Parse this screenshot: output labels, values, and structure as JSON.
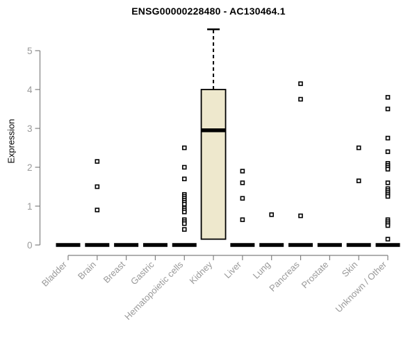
{
  "chart_data": {
    "type": "boxplot",
    "title": "ENSG00000228480 - AC130464.1",
    "ylabel": "Expression",
    "xlabel": "",
    "ylim": [
      0,
      5.6
    ],
    "yticks": [
      0,
      1,
      2,
      3,
      4,
      5
    ],
    "grid": false,
    "legend": "none",
    "categories": [
      "Bladder",
      "Brain",
      "Breast",
      "Gastric",
      "Hematopoietic cells",
      "Kidney",
      "Liver",
      "Lung",
      "Pancreas",
      "Prostate",
      "Skin",
      "Unknown / Other"
    ],
    "series": [
      {
        "category": "Bladder",
        "q1": 0,
        "median": 0,
        "q3": 0,
        "outliers": []
      },
      {
        "category": "Brain",
        "q1": 0,
        "median": 0,
        "q3": 0,
        "outliers": [
          2.15,
          1.5,
          0.9
        ]
      },
      {
        "category": "Breast",
        "q1": 0,
        "median": 0,
        "q3": 0,
        "outliers": []
      },
      {
        "category": "Gastric",
        "q1": 0,
        "median": 0,
        "q3": 0,
        "outliers": []
      },
      {
        "category": "Hematopoietic cells",
        "q1": 0,
        "median": 0,
        "q3": 0,
        "outliers": [
          2.5,
          2.0,
          1.7,
          1.3,
          1.25,
          1.2,
          1.15,
          1.1,
          1.05,
          0.95,
          0.9,
          0.85,
          0.65,
          0.6,
          0.55,
          0.4
        ]
      },
      {
        "category": "Kidney",
        "q1": 0.15,
        "median": 2.95,
        "q3": 4.0,
        "whisker_high": 5.55,
        "outliers": []
      },
      {
        "category": "Liver",
        "q1": 0,
        "median": 0,
        "q3": 0,
        "outliers": [
          1.9,
          1.6,
          1.2,
          0.65
        ]
      },
      {
        "category": "Lung",
        "q1": 0,
        "median": 0,
        "q3": 0,
        "outliers": [
          0.78
        ]
      },
      {
        "category": "Pancreas",
        "q1": 0,
        "median": 0,
        "q3": 0,
        "outliers": [
          4.15,
          3.75,
          0.75
        ]
      },
      {
        "category": "Prostate",
        "q1": 0,
        "median": 0,
        "q3": 0,
        "outliers": []
      },
      {
        "category": "Skin",
        "q1": 0,
        "median": 0,
        "q3": 0,
        "outliers": [
          2.5,
          1.65
        ]
      },
      {
        "category": "Unknown / Other",
        "q1": 0,
        "median": 0,
        "q3": 0,
        "outliers": [
          3.8,
          3.5,
          2.75,
          2.4,
          2.1,
          2.05,
          2.0,
          1.95,
          1.6,
          1.45,
          1.4,
          1.35,
          1.3,
          1.25,
          0.65,
          0.6,
          0.55,
          0.5,
          0.15
        ]
      }
    ],
    "colors": {
      "box_fill": "#EEE8CD",
      "box_stroke": "#000000",
      "bar": "#000000",
      "axis": "#808080",
      "tick_label": "#999999",
      "title": "#000000",
      "marker_stroke": "#000000",
      "marker_fill": "#FFFFFF"
    }
  }
}
